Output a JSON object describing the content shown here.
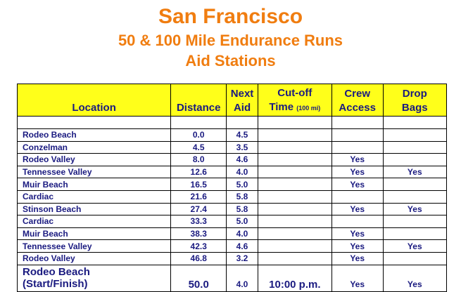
{
  "title": {
    "line1": "San Francisco",
    "line2": "50 & 100 Mile Endurance Runs",
    "line3": "Aid Stations"
  },
  "table": {
    "headers": {
      "location": "Location",
      "distance": "Distance",
      "next_aid_top": "Next",
      "next_aid_bottom": "Aid",
      "cutoff_top": "Cut-off",
      "cutoff_bottom": "Time",
      "cutoff_note": "(100 mi)",
      "crew_top": "Crew",
      "crew_bottom": "Access",
      "drop_top": "Drop",
      "drop_bottom": "Bags"
    },
    "rows": [
      {
        "location": "Rodeo Beach",
        "distance": "0.0",
        "next_aid": "4.5",
        "cutoff": "",
        "crew": "",
        "drop": ""
      },
      {
        "location": "Conzelman",
        "distance": "4.5",
        "next_aid": "3.5",
        "cutoff": "",
        "crew": "",
        "drop": ""
      },
      {
        "location": "Rodeo Valley",
        "distance": "8.0",
        "next_aid": "4.6",
        "cutoff": "",
        "crew": "Yes",
        "drop": ""
      },
      {
        "location": "Tennessee Valley",
        "distance": "12.6",
        "next_aid": "4.0",
        "cutoff": "",
        "crew": "Yes",
        "drop": "Yes"
      },
      {
        "location": "Muir Beach",
        "distance": "16.5",
        "next_aid": "5.0",
        "cutoff": "",
        "crew": "Yes",
        "drop": ""
      },
      {
        "location": "Cardiac",
        "distance": "21.6",
        "next_aid": "5.8",
        "cutoff": "",
        "crew": "",
        "drop": ""
      },
      {
        "location": "Stinson Beach",
        "distance": "27.4",
        "next_aid": "5.8",
        "cutoff": "",
        "crew": "Yes",
        "drop": "Yes"
      },
      {
        "location": "Cardiac",
        "distance": "33.3",
        "next_aid": "5.0",
        "cutoff": "",
        "crew": "",
        "drop": ""
      },
      {
        "location": "Muir Beach",
        "distance": "38.3",
        "next_aid": "4.0",
        "cutoff": "",
        "crew": "Yes",
        "drop": ""
      },
      {
        "location": "Tennessee Valley",
        "distance": "42.3",
        "next_aid": "4.6",
        "cutoff": "",
        "crew": "Yes",
        "drop": "Yes"
      },
      {
        "location": "Rodeo Valley",
        "distance": "46.8",
        "next_aid": "3.2",
        "cutoff": "",
        "crew": "Yes",
        "drop": ""
      }
    ],
    "last_row": {
      "location_line1": "Rodeo Beach",
      "location_line2": "(Start/Finish)",
      "distance": "50.0",
      "next_aid": "4.0",
      "cutoff": "10:00 p.m.",
      "crew": "Yes",
      "drop": "Yes"
    }
  },
  "colors": {
    "title": "#f07d10",
    "header_bg": "#ffff1a",
    "text": "#1a1a80"
  }
}
